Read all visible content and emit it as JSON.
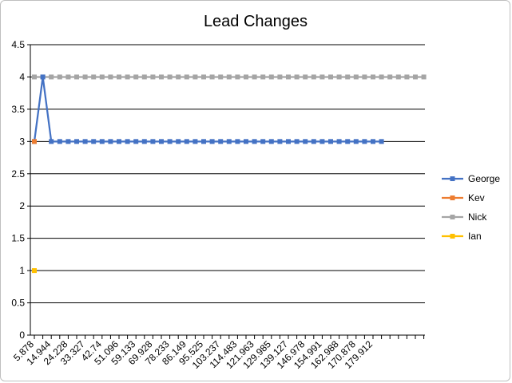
{
  "chart_data": {
    "type": "line",
    "title": "Lead Changes",
    "xlabel": "",
    "ylabel": "",
    "ylim": [
      0,
      4.5
    ],
    "y_ticks": [
      "0",
      "0.5",
      "1",
      "1.5",
      "2",
      "2.5",
      "3",
      "3.5",
      "4",
      "4.5"
    ],
    "x_tick_labels": [
      "5.878",
      "14.944",
      "24.228",
      "33.327",
      "42.74",
      "51.096",
      "59.133",
      "69.928",
      "78.233",
      "86.149",
      "95.525",
      "103.237",
      "114.483",
      "121.963",
      "129.985",
      "139.127",
      "146.978",
      "154.991",
      "162.988",
      "170.878",
      "179.912"
    ],
    "category_count": 47,
    "grid": true,
    "legend_position": "right",
    "series": [
      {
        "name": "George",
        "color": "#4472c4",
        "values": [
          3,
          4,
          3,
          3,
          3,
          3,
          3,
          3,
          3,
          3,
          3,
          3,
          3,
          3,
          3,
          3,
          3,
          3,
          3,
          3,
          3,
          3,
          3,
          3,
          3,
          3,
          3,
          3,
          3,
          3,
          3,
          3,
          3,
          3,
          3,
          3,
          3,
          3,
          3,
          3,
          3,
          3
        ]
      },
      {
        "name": "Kev",
        "color": "#ed7d31",
        "values": [
          3
        ]
      },
      {
        "name": "Nick",
        "color": "#a5a5a5",
        "values": [
          4,
          4,
          4,
          4,
          4,
          4,
          4,
          4,
          4,
          4,
          4,
          4,
          4,
          4,
          4,
          4,
          4,
          4,
          4,
          4,
          4,
          4,
          4,
          4,
          4,
          4,
          4,
          4,
          4,
          4,
          4,
          4,
          4,
          4,
          4,
          4,
          4,
          4,
          4,
          4,
          4,
          4,
          4,
          4,
          4,
          4,
          4
        ]
      },
      {
        "name": "Ian",
        "color": "#ffc000",
        "values": [
          1
        ]
      }
    ]
  }
}
